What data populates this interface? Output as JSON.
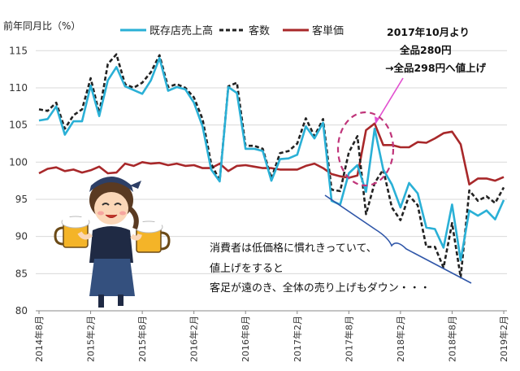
{
  "chart_data": {
    "type": "line",
    "ylabel": "前年同月比（%）",
    "ylim": [
      80,
      117
    ],
    "yticks": [
      80,
      85,
      90,
      95,
      100,
      105,
      110,
      115
    ],
    "x_tick_labels": [
      "2014年8月",
      "2015年2月",
      "2015年8月",
      "2016年2月",
      "2016年8月",
      "2017年2月",
      "2017年8月",
      "2018年2月",
      "2018年8月",
      "2019年2月"
    ],
    "grid": "horizontal",
    "legend_position": "top",
    "series": [
      {
        "name": "既存店売上高",
        "color": "#2ab0d6",
        "style": "solid",
        "values": [
          105.6,
          105.8,
          107.5,
          103.7,
          105.5,
          105.5,
          110.3,
          106.2,
          111.0,
          112.8,
          110.2,
          109.7,
          109.2,
          111.0,
          114.0,
          109.6,
          110.1,
          109.8,
          108.0,
          104.8,
          99.0,
          97.4,
          110.1,
          109.3,
          101.8,
          101.8,
          101.5,
          97.5,
          100.4,
          100.5,
          101.0,
          104.8,
          103.2,
          105.3,
          94.8,
          94.3,
          98.5,
          99.6,
          96.0,
          104.5,
          99.0,
          97.0,
          93.9,
          97.2,
          95.8,
          91.2,
          91.0,
          88.5,
          94.3,
          86.8,
          93.5,
          92.8,
          93.5,
          92.3,
          94.9
        ]
      },
      {
        "name": "客数",
        "color": "#222222",
        "style": "dashed",
        "values": [
          107.1,
          106.9,
          108.0,
          104.5,
          106.3,
          107.1,
          111.3,
          106.6,
          113.2,
          114.5,
          110.5,
          110.0,
          110.7,
          112.1,
          114.4,
          110.1,
          110.5,
          110.0,
          108.7,
          105.8,
          99.8,
          97.5,
          110.2,
          110.7,
          102.2,
          102.2,
          101.8,
          97.8,
          101.2,
          101.5,
          102.5,
          105.9,
          103.5,
          105.8,
          96.3,
          96.1,
          101.3,
          103.5,
          93.0,
          97.2,
          99.0,
          93.9,
          92.2,
          95.5,
          94.2,
          88.6,
          88.6,
          85.8,
          91.8,
          84.5,
          96.2,
          94.8,
          95.4,
          94.5,
          96.6
        ]
      },
      {
        "name": "客単価",
        "color": "#a8282a",
        "style": "solid",
        "values": [
          98.5,
          99.1,
          99.3,
          98.8,
          99.0,
          98.6,
          98.9,
          99.4,
          98.5,
          98.6,
          99.8,
          99.5,
          100.0,
          99.8,
          99.9,
          99.6,
          99.8,
          99.5,
          99.6,
          99.2,
          99.2,
          99.8,
          98.8,
          99.5,
          99.6,
          99.4,
          99.2,
          99.2,
          99.0,
          99.0,
          99.0,
          99.5,
          99.8,
          99.2,
          98.4,
          98.1,
          97.9,
          98.2,
          104.3,
          105.2,
          102.3,
          102.3,
          102.0,
          102.0,
          102.7,
          102.6,
          103.2,
          103.9,
          104.1,
          102.4,
          97.0,
          97.8,
          97.8,
          97.5,
          98.0
        ]
      }
    ],
    "annotations": {
      "price_change": [
        "2017年10月より",
        "全品280円",
        "→全品298円へ値上げ"
      ],
      "comment": [
        "消費者は低価格に慣れきっていて、",
        "値上げをすると",
        "客足が遠のき、全体の売り上げもダウン・・・"
      ]
    }
  }
}
